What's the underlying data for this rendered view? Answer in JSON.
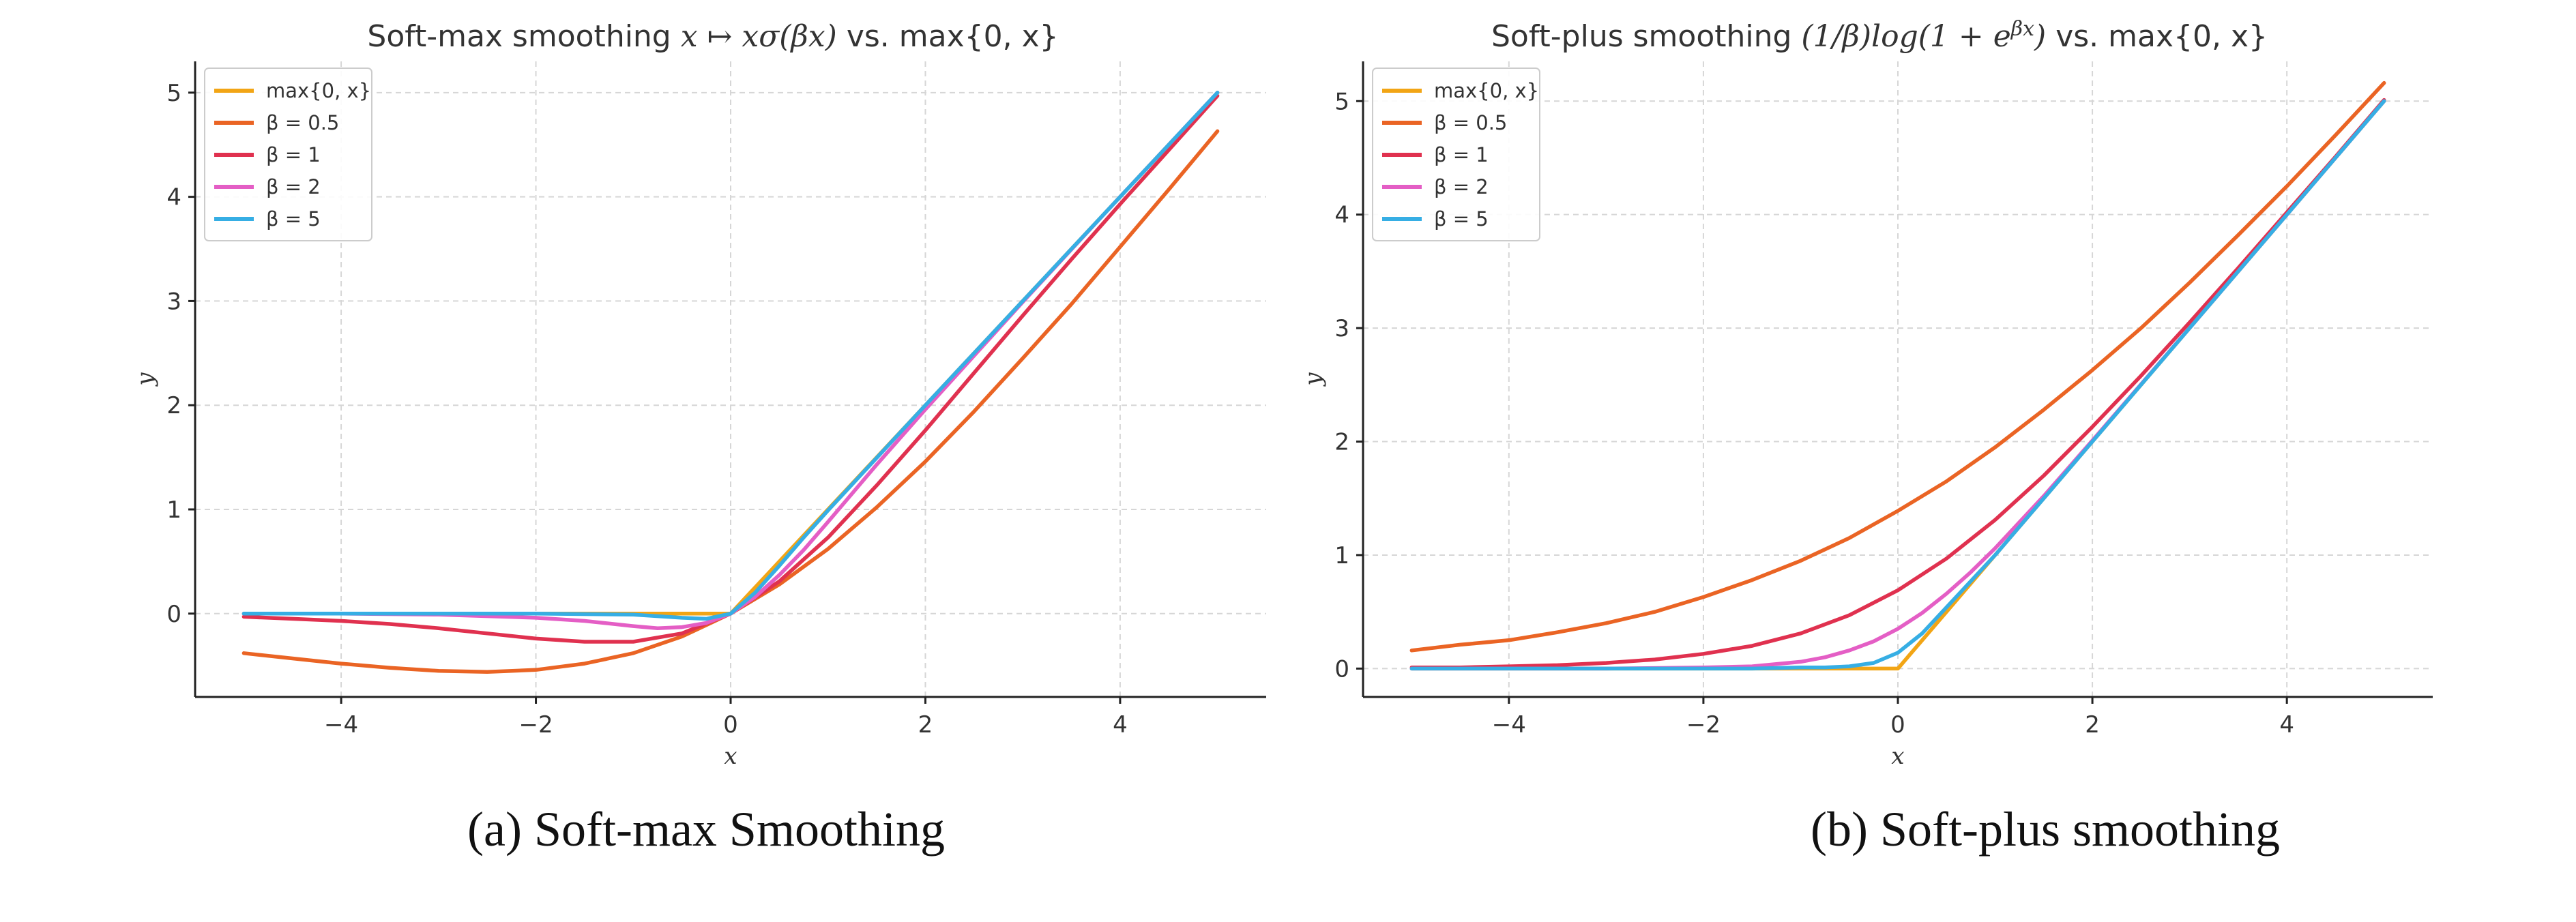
{
  "figure": {
    "captions": [
      "(a) Soft-max Smoothing",
      "(b) Soft-plus smoothing"
    ]
  },
  "chart_data": [
    {
      "type": "line",
      "title_parts": {
        "prefix": "Soft-max smoothing ",
        "formula": "x ↦ xσ(βx)",
        "suffix": " vs. max{0, x}"
      },
      "xlabel": "x",
      "ylabel": "y",
      "xlim": [
        -5.5,
        5.5
      ],
      "ylim": [
        -0.8,
        5.3
      ],
      "x_ticks": [
        -4,
        -2,
        0,
        2,
        4
      ],
      "x_tick_labels": [
        "−4",
        "−2",
        "0",
        "2",
        "4"
      ],
      "y_ticks": [
        0,
        1,
        2,
        3,
        4,
        5
      ],
      "y_tick_labels": [
        "0",
        "1",
        "2",
        "3",
        "4",
        "5"
      ],
      "grid": true,
      "legend_position": "top-left",
      "series": [
        {
          "name": "max{0, x}",
          "color": "#f2a515",
          "x": [
            -5,
            -4,
            -3,
            -2,
            -1,
            0,
            1,
            2,
            3,
            4,
            5
          ],
          "y": [
            0,
            0,
            0,
            0,
            0,
            0,
            1,
            2,
            3,
            4,
            5
          ]
        },
        {
          "name": "β = 0.5",
          "color": "#ea6424",
          "x": [
            -5,
            -4.5,
            -4,
            -3.5,
            -3,
            -2.5,
            -2,
            -1.5,
            -1,
            -0.5,
            0,
            0.5,
            1,
            1.5,
            2,
            2.5,
            3,
            3.5,
            4,
            4.5,
            5
          ],
          "y": [
            -0.38,
            -0.43,
            -0.48,
            -0.52,
            -0.55,
            -0.56,
            -0.54,
            -0.48,
            -0.38,
            -0.22,
            0,
            0.28,
            0.62,
            1.02,
            1.46,
            1.94,
            2.45,
            2.97,
            3.52,
            4.07,
            4.63
          ]
        },
        {
          "name": "β = 1",
          "color": "#e0314f",
          "x": [
            -5,
            -4.5,
            -4,
            -3.5,
            -3,
            -2.5,
            -2,
            -1.5,
            -1,
            -0.5,
            0,
            0.5,
            1,
            1.5,
            2,
            2.5,
            3,
            3.5,
            4,
            4.5,
            5
          ],
          "y": [
            -0.03,
            -0.05,
            -0.07,
            -0.1,
            -0.14,
            -0.19,
            -0.24,
            -0.27,
            -0.27,
            -0.19,
            0,
            0.31,
            0.73,
            1.23,
            1.76,
            2.31,
            2.86,
            3.4,
            3.93,
            4.45,
            4.97
          ]
        },
        {
          "name": "β = 2",
          "color": "#e45ec5",
          "x": [
            -5,
            -4,
            -3,
            -2,
            -1.5,
            -1,
            -0.75,
            -0.5,
            -0.25,
            0,
            0.25,
            0.5,
            0.75,
            1,
            1.5,
            2,
            3,
            4,
            5
          ],
          "y": [
            0,
            0,
            -0.01,
            -0.04,
            -0.07,
            -0.12,
            -0.14,
            -0.13,
            -0.09,
            0,
            0.16,
            0.37,
            0.61,
            0.88,
            1.43,
            1.96,
            2.99,
            4.0,
            5.0
          ]
        },
        {
          "name": "β = 5",
          "color": "#36aee4",
          "x": [
            -5,
            -4,
            -3,
            -2,
            -1,
            -0.5,
            -0.25,
            0,
            0.25,
            0.5,
            0.75,
            1,
            2,
            3,
            4,
            5
          ],
          "y": [
            0,
            0,
            0,
            0,
            -0.01,
            -0.04,
            -0.05,
            0,
            0.2,
            0.46,
            0.73,
            0.99,
            2.0,
            3.0,
            4.0,
            5.0
          ]
        }
      ]
    },
    {
      "type": "line",
      "title_parts": {
        "prefix": "Soft-plus smoothing ",
        "formula_main": "(1/β)log(1 + e",
        "formula_sup": "βx",
        "formula_close": ")",
        "suffix": " vs. max{0, x}"
      },
      "xlabel": "x",
      "ylabel": "y",
      "xlim": [
        -5.5,
        5.5
      ],
      "ylim": [
        -0.25,
        5.35
      ],
      "x_ticks": [
        -4,
        -2,
        0,
        2,
        4
      ],
      "x_tick_labels": [
        "−4",
        "−2",
        "0",
        "2",
        "4"
      ],
      "y_ticks": [
        0,
        1,
        2,
        3,
        4,
        5
      ],
      "y_tick_labels": [
        "0",
        "1",
        "2",
        "3",
        "4",
        "5"
      ],
      "grid": true,
      "legend_position": "top-left",
      "series": [
        {
          "name": "max{0, x}",
          "color": "#f2a515",
          "x": [
            -5,
            -4,
            -3,
            -2,
            -1,
            0,
            1,
            2,
            3,
            4,
            5
          ],
          "y": [
            0,
            0,
            0,
            0,
            0,
            0,
            1,
            2,
            3,
            4,
            5
          ]
        },
        {
          "name": "β = 0.5",
          "color": "#ea6424",
          "x": [
            -5,
            -4.5,
            -4,
            -3.5,
            -3,
            -2.5,
            -2,
            -1.5,
            -1,
            -0.5,
            0,
            0.5,
            1,
            1.5,
            2,
            2.5,
            3,
            3.5,
            4,
            4.5,
            5
          ],
          "y": [
            0.16,
            0.21,
            0.25,
            0.32,
            0.4,
            0.5,
            0.63,
            0.78,
            0.95,
            1.15,
            1.39,
            1.65,
            1.95,
            2.28,
            2.63,
            3.0,
            3.4,
            3.82,
            4.25,
            4.7,
            5.16
          ]
        },
        {
          "name": "β = 1",
          "color": "#e0314f",
          "x": [
            -5,
            -4.5,
            -4,
            -3.5,
            -3,
            -2.5,
            -2,
            -1.5,
            -1,
            -0.5,
            0,
            0.5,
            1,
            1.5,
            2,
            2.5,
            3,
            3.5,
            4,
            4.5,
            5
          ],
          "y": [
            0.01,
            0.01,
            0.02,
            0.03,
            0.05,
            0.08,
            0.13,
            0.2,
            0.31,
            0.47,
            0.69,
            0.97,
            1.31,
            1.7,
            2.13,
            2.58,
            3.05,
            3.53,
            4.02,
            4.51,
            5.01
          ]
        },
        {
          "name": "β = 2",
          "color": "#e45ec5",
          "x": [
            -5,
            -4,
            -3,
            -2,
            -1.5,
            -1,
            -0.75,
            -0.5,
            -0.25,
            0,
            0.25,
            0.5,
            0.75,
            1,
            1.5,
            2,
            3,
            4,
            5
          ],
          "y": [
            0,
            0,
            0,
            0.01,
            0.02,
            0.06,
            0.1,
            0.16,
            0.24,
            0.35,
            0.49,
            0.66,
            0.85,
            1.06,
            1.52,
            2.01,
            3.0,
            4.0,
            5.0
          ]
        },
        {
          "name": "β = 5",
          "color": "#36aee4",
          "x": [
            -5,
            -3,
            -1.5,
            -1,
            -0.75,
            -0.5,
            -0.25,
            0,
            0.25,
            0.5,
            0.75,
            1,
            1.5,
            2,
            3,
            4,
            5
          ],
          "y": [
            0,
            0,
            0,
            0.01,
            0.01,
            0.02,
            0.05,
            0.14,
            0.31,
            0.54,
            0.77,
            1.0,
            1.5,
            2.0,
            3.0,
            4.0,
            5.0
          ]
        }
      ]
    }
  ]
}
